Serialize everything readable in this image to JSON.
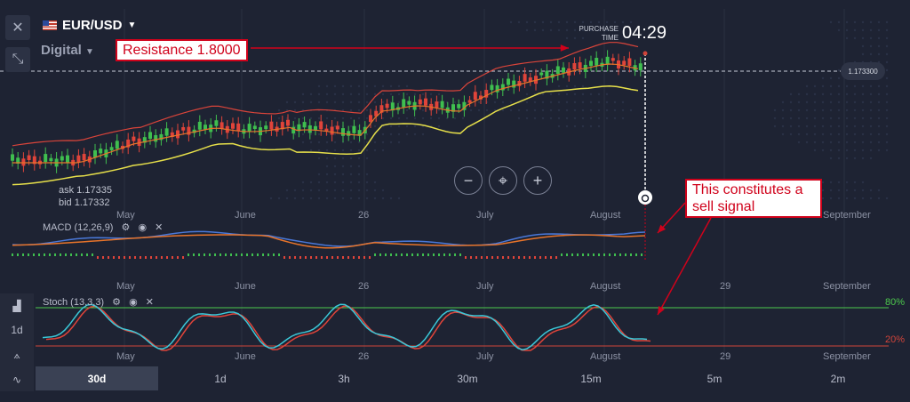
{
  "header": {
    "asset": "EUR/USD",
    "mode": "Digital",
    "purchase_time_label_1": "PURCHASE",
    "purchase_time_label_2": "TIME",
    "purchase_time": "04:29",
    "current_price": "1.173300"
  },
  "quote": {
    "ask": "ask 1.17335",
    "bid": "bid 1.17332"
  },
  "zoom_controls": {
    "minus": "−",
    "center": "⌖",
    "plus": "+"
  },
  "months": {
    "main": [
      "May",
      "June",
      "26",
      "July",
      "August",
      "September"
    ],
    "lower": [
      "May",
      "June",
      "26",
      "July",
      "August",
      "29",
      "September"
    ]
  },
  "indicators": {
    "macd_label": "MACD (12,26,9)",
    "stoch_label": "Stoch (13,3,3)",
    "overbought": "80%",
    "oversold": "20%"
  },
  "annotations": {
    "resistance": "Resistance 1.8000",
    "sell_signal": "This constitutes a sell signal"
  },
  "left_tools": {
    "period": "1d"
  },
  "timeframes": [
    "30d",
    "1d",
    "3h",
    "30m",
    "15m",
    "5m",
    "2m"
  ],
  "active_timeframe": "30d",
  "colors": {
    "background": "#1e2333",
    "bull": "#3fbf4f",
    "bear": "#e0443a",
    "bb_upper": "#d9443a",
    "bb_mid": "#e8742a",
    "bb_lower": "#e6df4a",
    "macd_line": "#4a78d8",
    "signal_line": "#e8742a",
    "stoch_k": "#3bc8d8",
    "stoch_d": "#e0443a",
    "level_80": "#4cc84c",
    "level_20": "#d0443a",
    "annotation": "#d0021b"
  }
}
